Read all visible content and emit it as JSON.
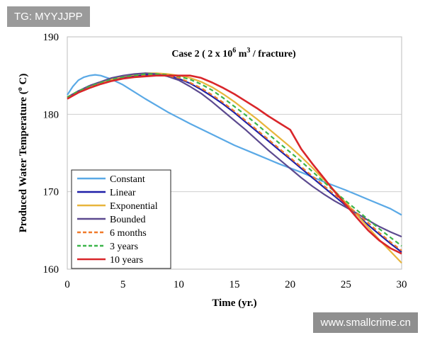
{
  "watermark": {
    "tag": "TG: MYYJJPP",
    "site": "www.smallcrime.cn"
  },
  "chart_data": {
    "type": "line",
    "title": {
      "prefix": "Case 2 ( 2 x 10",
      "sup": "6",
      "mid": " m",
      "sup2": "3",
      "suffix": " / fracture)"
    },
    "xlabel": "Time (yr.)",
    "ylabel": {
      "prefix": "Produced Water Temperature (",
      "sup": "o",
      "suffix": " C)"
    },
    "xlim": [
      0,
      30
    ],
    "ylim": [
      160,
      190
    ],
    "xticks": [
      0,
      5,
      10,
      15,
      20,
      25,
      30
    ],
    "yticks": [
      160,
      170,
      180,
      190
    ],
    "legend_position": "bottom-left",
    "series": [
      {
        "name": "Constant",
        "color": "#5aa9e6",
        "dashed": false,
        "x": [
          0,
          0.5,
          1,
          1.5,
          2,
          2.5,
          3,
          4,
          5,
          7,
          9,
          11,
          13,
          15,
          17,
          19,
          21,
          23,
          25,
          27,
          29,
          30
        ],
        "y": [
          182.5,
          183.6,
          184.4,
          184.8,
          185.0,
          185.1,
          185.0,
          184.5,
          183.8,
          182.0,
          180.3,
          178.8,
          177.4,
          176.0,
          174.8,
          173.6,
          172.5,
          171.3,
          170.2,
          169.0,
          167.8,
          167.0
        ]
      },
      {
        "name": "Linear",
        "color": "#1f1fa8",
        "dashed": false,
        "x": [
          0,
          1,
          2,
          3,
          4,
          5,
          6,
          7,
          8,
          9,
          10,
          11,
          12,
          13,
          14,
          15,
          16,
          17,
          18,
          19,
          20,
          21,
          22,
          23,
          24,
          25,
          26,
          27,
          28,
          29,
          30
        ],
        "y": [
          182.2,
          183.0,
          183.6,
          184.1,
          184.5,
          184.8,
          185.0,
          185.1,
          185.1,
          185.0,
          184.6,
          184.0,
          183.2,
          182.3,
          181.3,
          180.2,
          179.0,
          177.8,
          176.6,
          175.4,
          174.2,
          173.0,
          171.8,
          170.6,
          169.4,
          168.2,
          167.0,
          165.7,
          164.5,
          163.3,
          162.2
        ]
      },
      {
        "name": "Exponential",
        "color": "#e8b53c",
        "dashed": false,
        "x": [
          0,
          1,
          2,
          3,
          4,
          5,
          6,
          7,
          8,
          9,
          10,
          11,
          12,
          13,
          14,
          15,
          16,
          17,
          18,
          19,
          20,
          21,
          22,
          23,
          24,
          25,
          26,
          27,
          28,
          29,
          30
        ],
        "y": [
          182.2,
          183.0,
          183.6,
          184.1,
          184.5,
          184.9,
          185.1,
          185.3,
          185.3,
          185.2,
          185.0,
          184.7,
          184.2,
          183.5,
          182.6,
          181.6,
          180.5,
          179.4,
          178.2,
          177.0,
          175.8,
          174.5,
          173.1,
          171.6,
          170.1,
          168.6,
          167.0,
          165.4,
          163.8,
          162.3,
          160.8
        ]
      },
      {
        "name": "Bounded",
        "color": "#5c4a8f",
        "dashed": false,
        "x": [
          0,
          1,
          2,
          3,
          4,
          5,
          6,
          7,
          8,
          9,
          10,
          11,
          12,
          13,
          14,
          15,
          16,
          17,
          18,
          19,
          20,
          21,
          22,
          23,
          24,
          25,
          26,
          27,
          28,
          29,
          30
        ],
        "y": [
          182.2,
          183.0,
          183.7,
          184.2,
          184.7,
          185.0,
          185.2,
          185.3,
          185.2,
          184.9,
          184.4,
          183.6,
          182.7,
          181.6,
          180.4,
          179.2,
          178.0,
          176.7,
          175.4,
          174.2,
          173.0,
          171.8,
          170.7,
          169.7,
          168.8,
          168.0,
          167.2,
          166.3,
          165.5,
          164.8,
          164.2
        ]
      },
      {
        "name": "6 months",
        "color": "#f07a2a",
        "dashed": true,
        "x": [
          0,
          1,
          2,
          3,
          4,
          5,
          6,
          7,
          8,
          9,
          10,
          11,
          12,
          13,
          14,
          15,
          16,
          17,
          18,
          19,
          20,
          21,
          22,
          23,
          24,
          25,
          26,
          27,
          28,
          29,
          30
        ],
        "y": [
          182.2,
          183.0,
          183.6,
          184.1,
          184.5,
          184.8,
          185.0,
          185.1,
          185.1,
          185.0,
          184.7,
          184.1,
          183.4,
          182.5,
          181.5,
          180.4,
          179.2,
          178.0,
          176.8,
          175.6,
          174.4,
          173.2,
          172.0,
          170.8,
          169.6,
          168.4,
          167.2,
          166.0,
          164.7,
          163.5,
          162.4
        ]
      },
      {
        "name": "3 years",
        "color": "#3cb54a",
        "dashed": true,
        "x": [
          0,
          1,
          2,
          3,
          4,
          5,
          6,
          7,
          8,
          9,
          10,
          11,
          12,
          13,
          14,
          15,
          16,
          17,
          18,
          19,
          20,
          21,
          22,
          23,
          24,
          25,
          26,
          27,
          28,
          29,
          30
        ],
        "y": [
          182.2,
          183.0,
          183.6,
          184.1,
          184.5,
          184.8,
          185.0,
          185.2,
          185.2,
          185.1,
          184.9,
          184.5,
          183.9,
          183.1,
          182.1,
          181.0,
          179.9,
          178.7,
          177.5,
          176.3,
          175.1,
          173.9,
          172.6,
          171.3,
          170.0,
          168.8,
          167.6,
          166.4,
          165.2,
          164.1,
          163.0
        ]
      },
      {
        "name": "10 years",
        "color": "#d9262a",
        "dashed": false,
        "x": [
          0,
          1,
          2,
          3,
          4,
          5,
          6,
          7,
          8,
          9,
          10,
          11,
          12,
          13,
          14,
          15,
          16,
          17,
          18,
          19,
          20,
          21,
          22,
          23,
          24,
          25,
          26,
          27,
          28,
          29,
          30
        ],
        "y": [
          182.0,
          182.8,
          183.4,
          183.9,
          184.3,
          184.6,
          184.8,
          184.9,
          185.0,
          185.0,
          185.0,
          185.0,
          184.7,
          184.1,
          183.4,
          182.6,
          181.7,
          180.8,
          179.8,
          178.9,
          178.0,
          175.5,
          173.6,
          171.8,
          170.0,
          168.3,
          166.6,
          165.0,
          163.7,
          162.7,
          162.0
        ]
      }
    ]
  }
}
